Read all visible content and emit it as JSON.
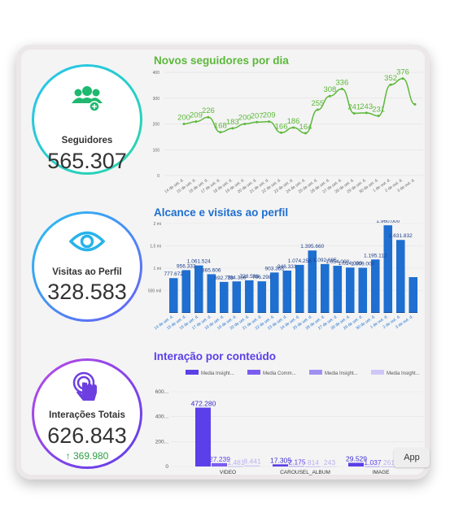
{
  "kpis": {
    "seguidores": {
      "label": "Seguidores",
      "value": "565.307"
    },
    "visitas": {
      "label": "Visitas ao Perfil",
      "value": "328.583"
    },
    "interacoes": {
      "label": "Interações Totais",
      "value": "626.843",
      "delta": "369.980"
    }
  },
  "colors": {
    "green": "#5db83b",
    "blue": "#1e6fd0",
    "purple": "#5b3fe8",
    "teal": "#2bd6a8",
    "ring_blue": "#27c3f0",
    "ring_purple": "#8a5cf6"
  },
  "icons": {
    "seguidores": "users-plus-icon",
    "visitas": "eye-icon",
    "interacoes": "tap-hand-icon"
  },
  "app_button": "App",
  "chart_data": [
    {
      "type": "line",
      "title": "Novos seguidores por dia",
      "x": [
        "14 de set. d.",
        "15 de set. d.",
        "16 de set. d.",
        "17 de set. d.",
        "18 de set. d.",
        "19 de set. d.",
        "20 de set. d.",
        "21 de set. d.",
        "22 de set. d.",
        "23 de set. d.",
        "24 de set. d.",
        "25 de set. d.",
        "26 de set. d.",
        "27 de set. d.",
        "28 de set. d.",
        "29 de set. d.",
        "30 de set. d.",
        "1 de out. d.",
        "2 de out. d.",
        "3 de out. d."
      ],
      "series": [
        {
          "values": [
            200,
            209,
            226,
            168,
            183,
            200,
            207,
            209,
            166,
            186,
            164,
            255,
            308,
            336,
            241,
            243,
            231,
            352,
            376,
            276
          ]
        }
      ],
      "data_labels": [
        "200",
        "209",
        "226",
        "168",
        "183",
        "200",
        "207",
        "209",
        "166",
        "186",
        "164",
        "255",
        "308",
        "336",
        "241",
        "243",
        "231",
        "352",
        "376"
      ],
      "yticks": [
        "400",
        "300",
        "200",
        "100",
        "0"
      ],
      "ylim": [
        0,
        400
      ]
    },
    {
      "type": "bar",
      "title": "Alcance e visitas ao perfil",
      "categories": [
        "14 de set. d.",
        "15 de set. d.",
        "16 de set. d.",
        "17 de set. d.",
        "18 de set. d.",
        "19 de set. d.",
        "20 de set. d.",
        "21 de set. d.",
        "22 de set. d.",
        "23 de set. d.",
        "24 de set. d.",
        "25 de set. d.",
        "26 de set. d.",
        "27 de set. d.",
        "28 de set. d.",
        "29 de set. d.",
        "30 de set. d.",
        "1 de out. d.",
        "2 de out. d.",
        "3 de out. d."
      ],
      "series": [
        {
          "values": [
            777672,
            956333,
            1061524,
            865606,
            692738,
            704386,
            728588,
            706298,
            903366,
            946331,
            1074256,
            1395660,
            1092685,
            1054000,
            1014000,
            1009000,
            1195112,
            1960000,
            1631832,
            800000
          ]
        },
        {
          "values": [
            14000,
            12000,
            13000,
            11000,
            12000,
            11000,
            12000,
            11000,
            12000,
            13000,
            12000,
            14000,
            13000,
            12000,
            12000,
            11000,
            12000,
            15000,
            14000,
            12000
          ]
        }
      ],
      "data_labels": [
        "777.672",
        "956.333",
        "1.061.524",
        "865.606",
        "692.738",
        "704.386",
        "728.588",
        "706.298",
        "903.366",
        "946.331",
        "1.074.256",
        "1.395.660",
        "1.092.685",
        "1.054.000",
        "1.014.000",
        "1.009.000",
        "1.195.112",
        "1.960.000",
        "1.631.832"
      ],
      "yticks": [
        "2 mi",
        "1,5 mi",
        "1 mi",
        "500 mil"
      ],
      "ylim": [
        0,
        2000000
      ]
    },
    {
      "type": "bar",
      "title": "Interação por conteúdo",
      "categories": [
        "VIDEO",
        "CAROUSEL_ALBUM",
        "IMAGE"
      ],
      "series": [
        {
          "name": "Media Insight...",
          "values": [
            472280,
            17305,
            29529
          ]
        },
        {
          "name": "Media Comm...",
          "values": [
            27239,
            2175,
            1037
          ]
        },
        {
          "name": "Media Insight...",
          "values": [
            1481,
            814,
            261
          ]
        },
        {
          "name": "Media Insight...",
          "values": [
            8441,
            243,
            0
          ]
        }
      ],
      "data_labels": [
        "472.280",
        "27.239",
        "1.481",
        "8.441",
        "17.305",
        "2.175",
        "814",
        "243",
        "29.529",
        "1.037",
        "261"
      ],
      "yticks": [
        "600...",
        "400...",
        "200...",
        "0"
      ],
      "ylim": [
        0,
        600000
      ]
    }
  ]
}
